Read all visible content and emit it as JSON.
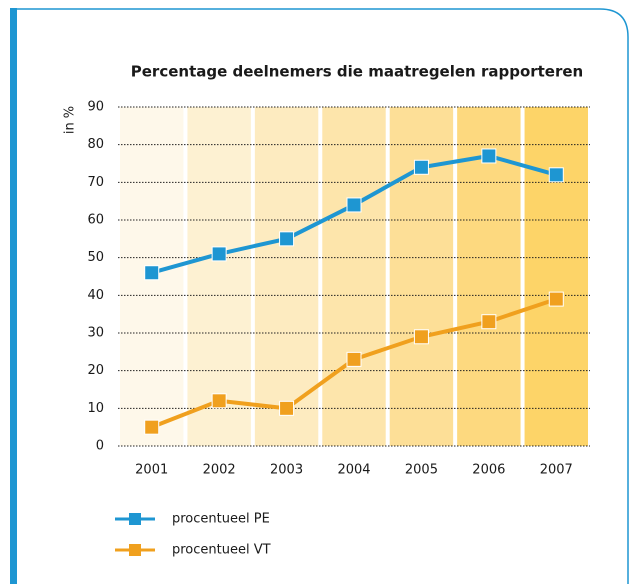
{
  "chart_data": {
    "type": "line",
    "title": "Percentage deelnemers die maatregelen rapporteren",
    "y_label": "in %",
    "categories": [
      "2001",
      "2002",
      "2003",
      "2004",
      "2005",
      "2006",
      "2007"
    ],
    "series": [
      {
        "name": "procentueel PE",
        "color": "#1e96d2",
        "values": [
          46,
          51,
          55,
          64,
          74,
          77,
          72
        ]
      },
      {
        "name": "procentueel VT",
        "color": "#f0a01e",
        "values": [
          5,
          12,
          10,
          23,
          29,
          33,
          39
        ]
      }
    ],
    "ylim": [
      0,
      90
    ],
    "yticks": [
      0,
      10,
      20,
      30,
      40,
      50,
      60,
      70,
      80,
      90
    ],
    "grid": true
  }
}
